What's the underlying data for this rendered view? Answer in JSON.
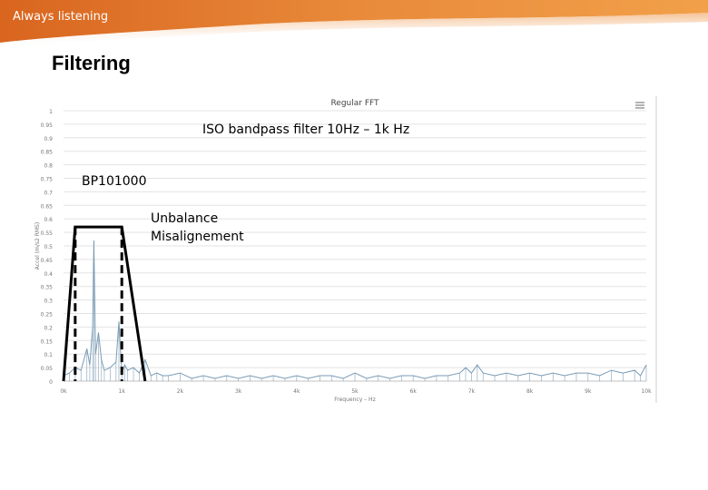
{
  "header": {
    "tagline": "Always listening"
  },
  "slide": {
    "title": "Filtering"
  },
  "chart_data": {
    "type": "line",
    "title": "Regular FFT",
    "xlabel": "Frequency – Hz",
    "ylabel": "Accel (m/s2 RMS)",
    "xlim": [
      0,
      10000
    ],
    "ylim": [
      0,
      1
    ],
    "x_tick_values": [
      0,
      1000,
      2000,
      3000,
      4000,
      5000,
      6000,
      7000,
      8000,
      9000,
      10000
    ],
    "x_tick_labels": [
      "0k",
      "1k",
      "2k",
      "3k",
      "4k",
      "5k",
      "6k",
      "7k",
      "8k",
      "9k",
      "10k"
    ],
    "y_tick_values": [
      0,
      0.05,
      0.1,
      0.15,
      0.2,
      0.25,
      0.3,
      0.35,
      0.4,
      0.45,
      0.5,
      0.55,
      0.6,
      0.65,
      0.7,
      0.75,
      0.8,
      0.85,
      0.9,
      0.95,
      1
    ],
    "y_tick_labels": [
      "0",
      "0.05",
      "0.1",
      "0.15",
      "0.2",
      "0.25",
      "0.3",
      "0.35",
      "0.4",
      "0.45",
      "0.5",
      "0.55",
      "0.6",
      "0.65",
      "0.7",
      "0.75",
      "0.8",
      "0.85",
      "0.9",
      "0.95",
      "1"
    ],
    "grid": true,
    "line_color": "#7a9bb5",
    "series": [
      {
        "x": [
          0,
          100,
          200,
          300,
          400,
          450,
          500,
          520,
          550,
          600,
          650,
          700,
          800,
          900,
          950,
          1000,
          1050,
          1100,
          1200,
          1300,
          1400,
          1500,
          1600,
          1700,
          1800,
          2000,
          2200,
          2400,
          2600,
          2800,
          3000,
          3200,
          3400,
          3600,
          3800,
          4000,
          4200,
          4400,
          4600,
          4800,
          5000,
          5200,
          5400,
          5600,
          5800,
          6000,
          6200,
          6400,
          6600,
          6800,
          6900,
          7000,
          7100,
          7200,
          7400,
          7600,
          7800,
          8000,
          8200,
          8400,
          8600,
          8800,
          9000,
          9200,
          9400,
          9600,
          9800,
          9900,
          10000
        ],
        "y": [
          0.02,
          0.03,
          0.05,
          0.04,
          0.12,
          0.06,
          0.2,
          0.52,
          0.1,
          0.18,
          0.08,
          0.04,
          0.05,
          0.07,
          0.22,
          0.03,
          0.06,
          0.04,
          0.05,
          0.03,
          0.08,
          0.02,
          0.03,
          0.02,
          0.02,
          0.03,
          0.01,
          0.02,
          0.01,
          0.02,
          0.01,
          0.02,
          0.01,
          0.02,
          0.01,
          0.02,
          0.01,
          0.02,
          0.02,
          0.01,
          0.03,
          0.01,
          0.02,
          0.01,
          0.02,
          0.02,
          0.01,
          0.02,
          0.02,
          0.03,
          0.05,
          0.03,
          0.06,
          0.03,
          0.02,
          0.03,
          0.02,
          0.03,
          0.02,
          0.03,
          0.02,
          0.03,
          0.03,
          0.02,
          0.04,
          0.03,
          0.04,
          0.02,
          0.06
        ]
      }
    ],
    "filter_overlay": {
      "label": "ISO bandpass filter 10Hz – 1k Hz",
      "model": "BP101000",
      "passband_x": [
        0,
        1400
      ],
      "passband_top": [
        200,
        1000
      ],
      "passband_y": 0.57,
      "dashed_markers_x": [
        200,
        1000
      ]
    },
    "annotations": [
      "Unbalance",
      "Misalignement"
    ]
  }
}
